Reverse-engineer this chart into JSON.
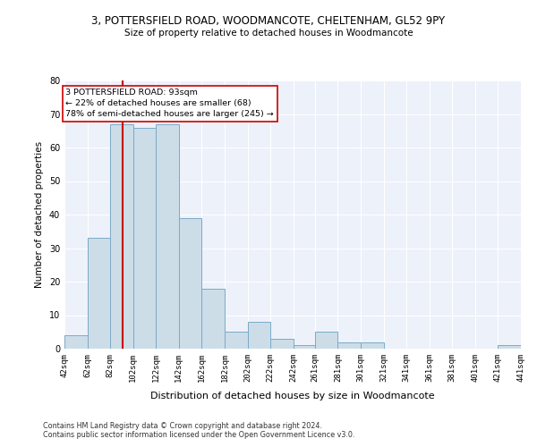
{
  "title": "3, POTTERSFIELD ROAD, WOODMANCOTE, CHELTENHAM, GL52 9PY",
  "subtitle": "Size of property relative to detached houses in Woodmancote",
  "xlabel": "Distribution of detached houses by size in Woodmancote",
  "ylabel": "Number of detached properties",
  "bar_color": "#ccdde8",
  "bar_edge_color": "#7aaac8",
  "background_color": "#edf1fa",
  "grid_color": "#ffffff",
  "bins": [
    42,
    62,
    82,
    102,
    122,
    142,
    162,
    182,
    202,
    222,
    242,
    261,
    281,
    301,
    321,
    341,
    361,
    381,
    401,
    421,
    441
  ],
  "counts": [
    4,
    33,
    67,
    66,
    67,
    39,
    18,
    5,
    8,
    3,
    1,
    5,
    2,
    2,
    0,
    0,
    0,
    0,
    0,
    1
  ],
  "property_size": 93,
  "ylim": [
    0,
    80
  ],
  "yticks": [
    0,
    10,
    20,
    30,
    40,
    50,
    60,
    70,
    80
  ],
  "annotation_text": "3 POTTERSFIELD ROAD: 93sqm\n← 22% of detached houses are smaller (68)\n78% of semi-detached houses are larger (245) →",
  "vline_color": "#cc0000",
  "annotation_box_edge": "#cc0000",
  "footer1": "Contains HM Land Registry data © Crown copyright and database right 2024.",
  "footer2": "Contains public sector information licensed under the Open Government Licence v3.0."
}
